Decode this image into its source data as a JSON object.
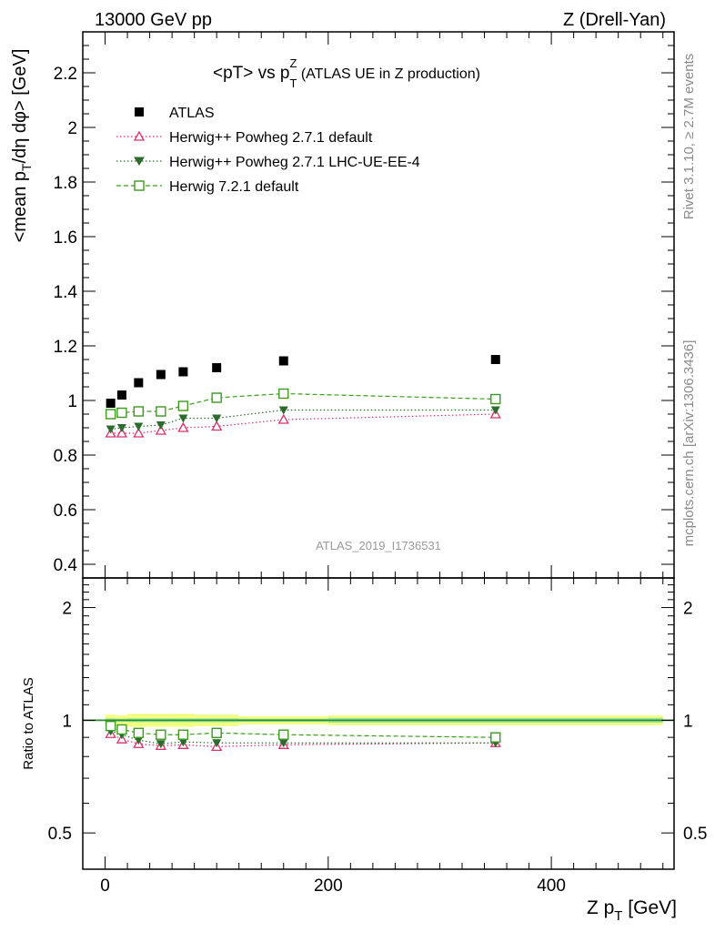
{
  "header": {
    "left": "13000 GeV pp",
    "right": "Z (Drell-Yan)"
  },
  "side_labels": {
    "rivet": "Rivet 3.1.10, ≥ 2.7M events",
    "mcplots": "mcplots.cern.ch [arXiv:1306.3436]"
  },
  "title": {
    "main": "<pT> vs p",
    "sup": "Z",
    "sub": "T",
    "suffix": " (ATLAS UE in Z production)"
  },
  "watermark": "ATLAS_2019_I1736531",
  "colors": {
    "atlas": "#000000",
    "herwig_pp_default": "#d6336c",
    "herwig_pp_ue": "#2d6a2d",
    "herwig72": "#3c9a1e",
    "band_outer": "#f4ff80",
    "band_inner": "#9ae8a0",
    "ratio_line": "#2e8b2e"
  },
  "chart_data": [
    {
      "type": "scatter",
      "panel": "main",
      "ylabel": {
        "pre": "<mean p",
        "sub": "T",
        "post": "/dη dφ> [GeV]"
      },
      "xlim": [
        -20,
        510
      ],
      "ylim": [
        0.35,
        2.35
      ],
      "yticks": [
        0.4,
        0.6,
        0.8,
        1,
        1.2,
        1.4,
        1.6,
        1.8,
        2,
        2.2
      ],
      "ytick_labels": [
        "0.4",
        "0.6",
        "0.8",
        "1",
        "1.2",
        "1.4",
        "1.6",
        "1.8",
        "2",
        "2.2"
      ],
      "legend_position": "top-left",
      "series": [
        {
          "key": "atlas",
          "name": "ATLAS",
          "marker": "square-filled",
          "x": [
            5,
            15,
            30,
            50,
            70,
            100,
            160,
            350
          ],
          "y": [
            0.99,
            1.02,
            1.065,
            1.095,
            1.105,
            1.12,
            1.145,
            1.15
          ]
        },
        {
          "key": "herwig_pp_default",
          "name": "Herwig++ Powheg 2.7.1 default",
          "marker": "triangle-up-open",
          "line": "dotted",
          "x": [
            5,
            15,
            30,
            50,
            70,
            100,
            160,
            350
          ],
          "y": [
            0.88,
            0.88,
            0.88,
            0.89,
            0.9,
            0.905,
            0.93,
            0.95
          ]
        },
        {
          "key": "herwig_pp_ue",
          "name": "Herwig++ Powheg 2.7.1 LHC-UE-EE-4",
          "marker": "triangle-down-filled",
          "line": "dotted",
          "x": [
            5,
            15,
            30,
            50,
            70,
            100,
            160,
            350
          ],
          "y": [
            0.895,
            0.9,
            0.905,
            0.91,
            0.935,
            0.935,
            0.965,
            0.965
          ]
        },
        {
          "key": "herwig72",
          "name": "Herwig 7.2.1 default",
          "marker": "square-open",
          "line": "dashed",
          "x": [
            5,
            15,
            30,
            50,
            70,
            100,
            160,
            350
          ],
          "y": [
            0.95,
            0.955,
            0.96,
            0.96,
            0.98,
            1.01,
            1.025,
            1.005
          ]
        }
      ]
    },
    {
      "type": "scatter",
      "panel": "ratio",
      "ylabel": "Ratio to ATLAS",
      "xlabel": {
        "pre": "Z p",
        "sub": "T",
        "post": " [GeV]"
      },
      "xlim": [
        -20,
        510
      ],
      "ylim": [
        0.4,
        2.4
      ],
      "yscale": "log",
      "xticks": [
        0,
        200,
        400
      ],
      "xtick_labels": [
        "0",
        "200",
        "400"
      ],
      "yticks": [
        0.5,
        1,
        2
      ],
      "ytick_labels": [
        "0.5",
        "1",
        "2"
      ],
      "band_x": [
        [
          0,
          10
        ],
        [
          10,
          20
        ],
        [
          20,
          40
        ],
        [
          40,
          60
        ],
        [
          60,
          80
        ],
        [
          80,
          120
        ],
        [
          120,
          200
        ],
        [
          200,
          500
        ]
      ],
      "band_outer": [
        0.035,
        0.03,
        0.04,
        0.04,
        0.04,
        0.035,
        0.025,
        0.03
      ],
      "band_inner": [
        0.012,
        0.01,
        0.012,
        0.012,
        0.012,
        0.012,
        0.01,
        0.015
      ],
      "series": [
        {
          "key": "herwig_pp_default",
          "marker": "triangle-up-open",
          "line": "dotted",
          "x": [
            5,
            15,
            30,
            50,
            70,
            100,
            160,
            350
          ],
          "y": [
            0.92,
            0.89,
            0.865,
            0.855,
            0.86,
            0.85,
            0.86,
            0.87
          ]
        },
        {
          "key": "herwig_pp_ue",
          "marker": "triangle-down-filled",
          "line": "dotted",
          "x": [
            5,
            15,
            30,
            50,
            70,
            100,
            160,
            350
          ],
          "y": [
            0.935,
            0.915,
            0.885,
            0.865,
            0.875,
            0.87,
            0.87,
            0.87
          ]
        },
        {
          "key": "herwig72",
          "marker": "square-open",
          "line": "dashed",
          "x": [
            5,
            15,
            30,
            50,
            70,
            100,
            160,
            350
          ],
          "y": [
            0.965,
            0.945,
            0.925,
            0.915,
            0.915,
            0.925,
            0.915,
            0.9
          ]
        }
      ]
    }
  ]
}
